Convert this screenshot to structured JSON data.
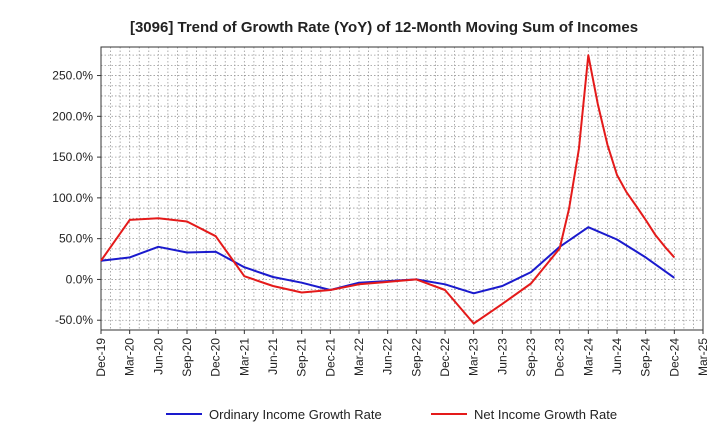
{
  "chart_data": {
    "type": "line",
    "title": "[3096]  Trend of Growth Rate (YoY) of 12-Month Moving Sum of Incomes",
    "categories": [
      "Dec-19",
      "Mar-20",
      "Jun-20",
      "Sep-20",
      "Dec-20",
      "Mar-21",
      "Jun-21",
      "Sep-21",
      "Dec-21",
      "Mar-22",
      "Jun-22",
      "Sep-22",
      "Dec-22",
      "Mar-23",
      "Jun-23",
      "Sep-23",
      "Dec-23",
      "Mar-24",
      "Jun-24",
      "Sep-24",
      "Dec-24",
      "Mar-25"
    ],
    "y_ticks": [
      -50,
      0,
      50,
      100,
      150,
      200,
      250
    ],
    "y_tick_labels": [
      "-50.0%",
      "0.0%",
      "50.0%",
      "100.0%",
      "150.0%",
      "200.0%",
      "250.0%"
    ],
    "ylim": [
      -62,
      285
    ],
    "grid": true,
    "legend_position": "bottom",
    "series": [
      {
        "name": "Ordinary Income Growth Rate",
        "color": "#1a1acd",
        "points": [
          [
            0,
            23
          ],
          [
            1,
            27
          ],
          [
            2,
            40
          ],
          [
            3,
            33
          ],
          [
            4,
            34
          ],
          [
            5,
            15
          ],
          [
            6,
            3
          ],
          [
            7,
            -4
          ],
          [
            8,
            -13
          ],
          [
            9,
            -4
          ],
          [
            10,
            -2
          ],
          [
            11,
            0
          ],
          [
            12,
            -6
          ],
          [
            13,
            -17
          ],
          [
            14,
            -8
          ],
          [
            15,
            9
          ],
          [
            16,
            40
          ],
          [
            17,
            64
          ],
          [
            18,
            49
          ],
          [
            19,
            27
          ],
          [
            20,
            2
          ]
        ]
      },
      {
        "name": "Net Income Growth Rate",
        "color": "#e41a1a",
        "points": [
          [
            0,
            23
          ],
          [
            1,
            73
          ],
          [
            2,
            75
          ],
          [
            3,
            71
          ],
          [
            4,
            53
          ],
          [
            5,
            4
          ],
          [
            6,
            -8
          ],
          [
            7,
            -16
          ],
          [
            8,
            -13
          ],
          [
            9,
            -6
          ],
          [
            10,
            -3
          ],
          [
            11,
            0
          ],
          [
            12,
            -13
          ],
          [
            13,
            -54
          ],
          [
            14,
            -30
          ],
          [
            15,
            -5
          ],
          [
            16,
            38
          ],
          [
            16.33,
            87
          ],
          [
            16.67,
            160
          ],
          [
            17,
            275
          ],
          [
            17.33,
            215
          ],
          [
            17.67,
            165
          ],
          [
            18,
            128
          ],
          [
            18.33,
            107
          ],
          [
            18.67,
            90
          ],
          [
            19,
            73
          ],
          [
            19.33,
            55
          ],
          [
            19.67,
            40
          ],
          [
            20,
            27
          ]
        ]
      }
    ]
  }
}
